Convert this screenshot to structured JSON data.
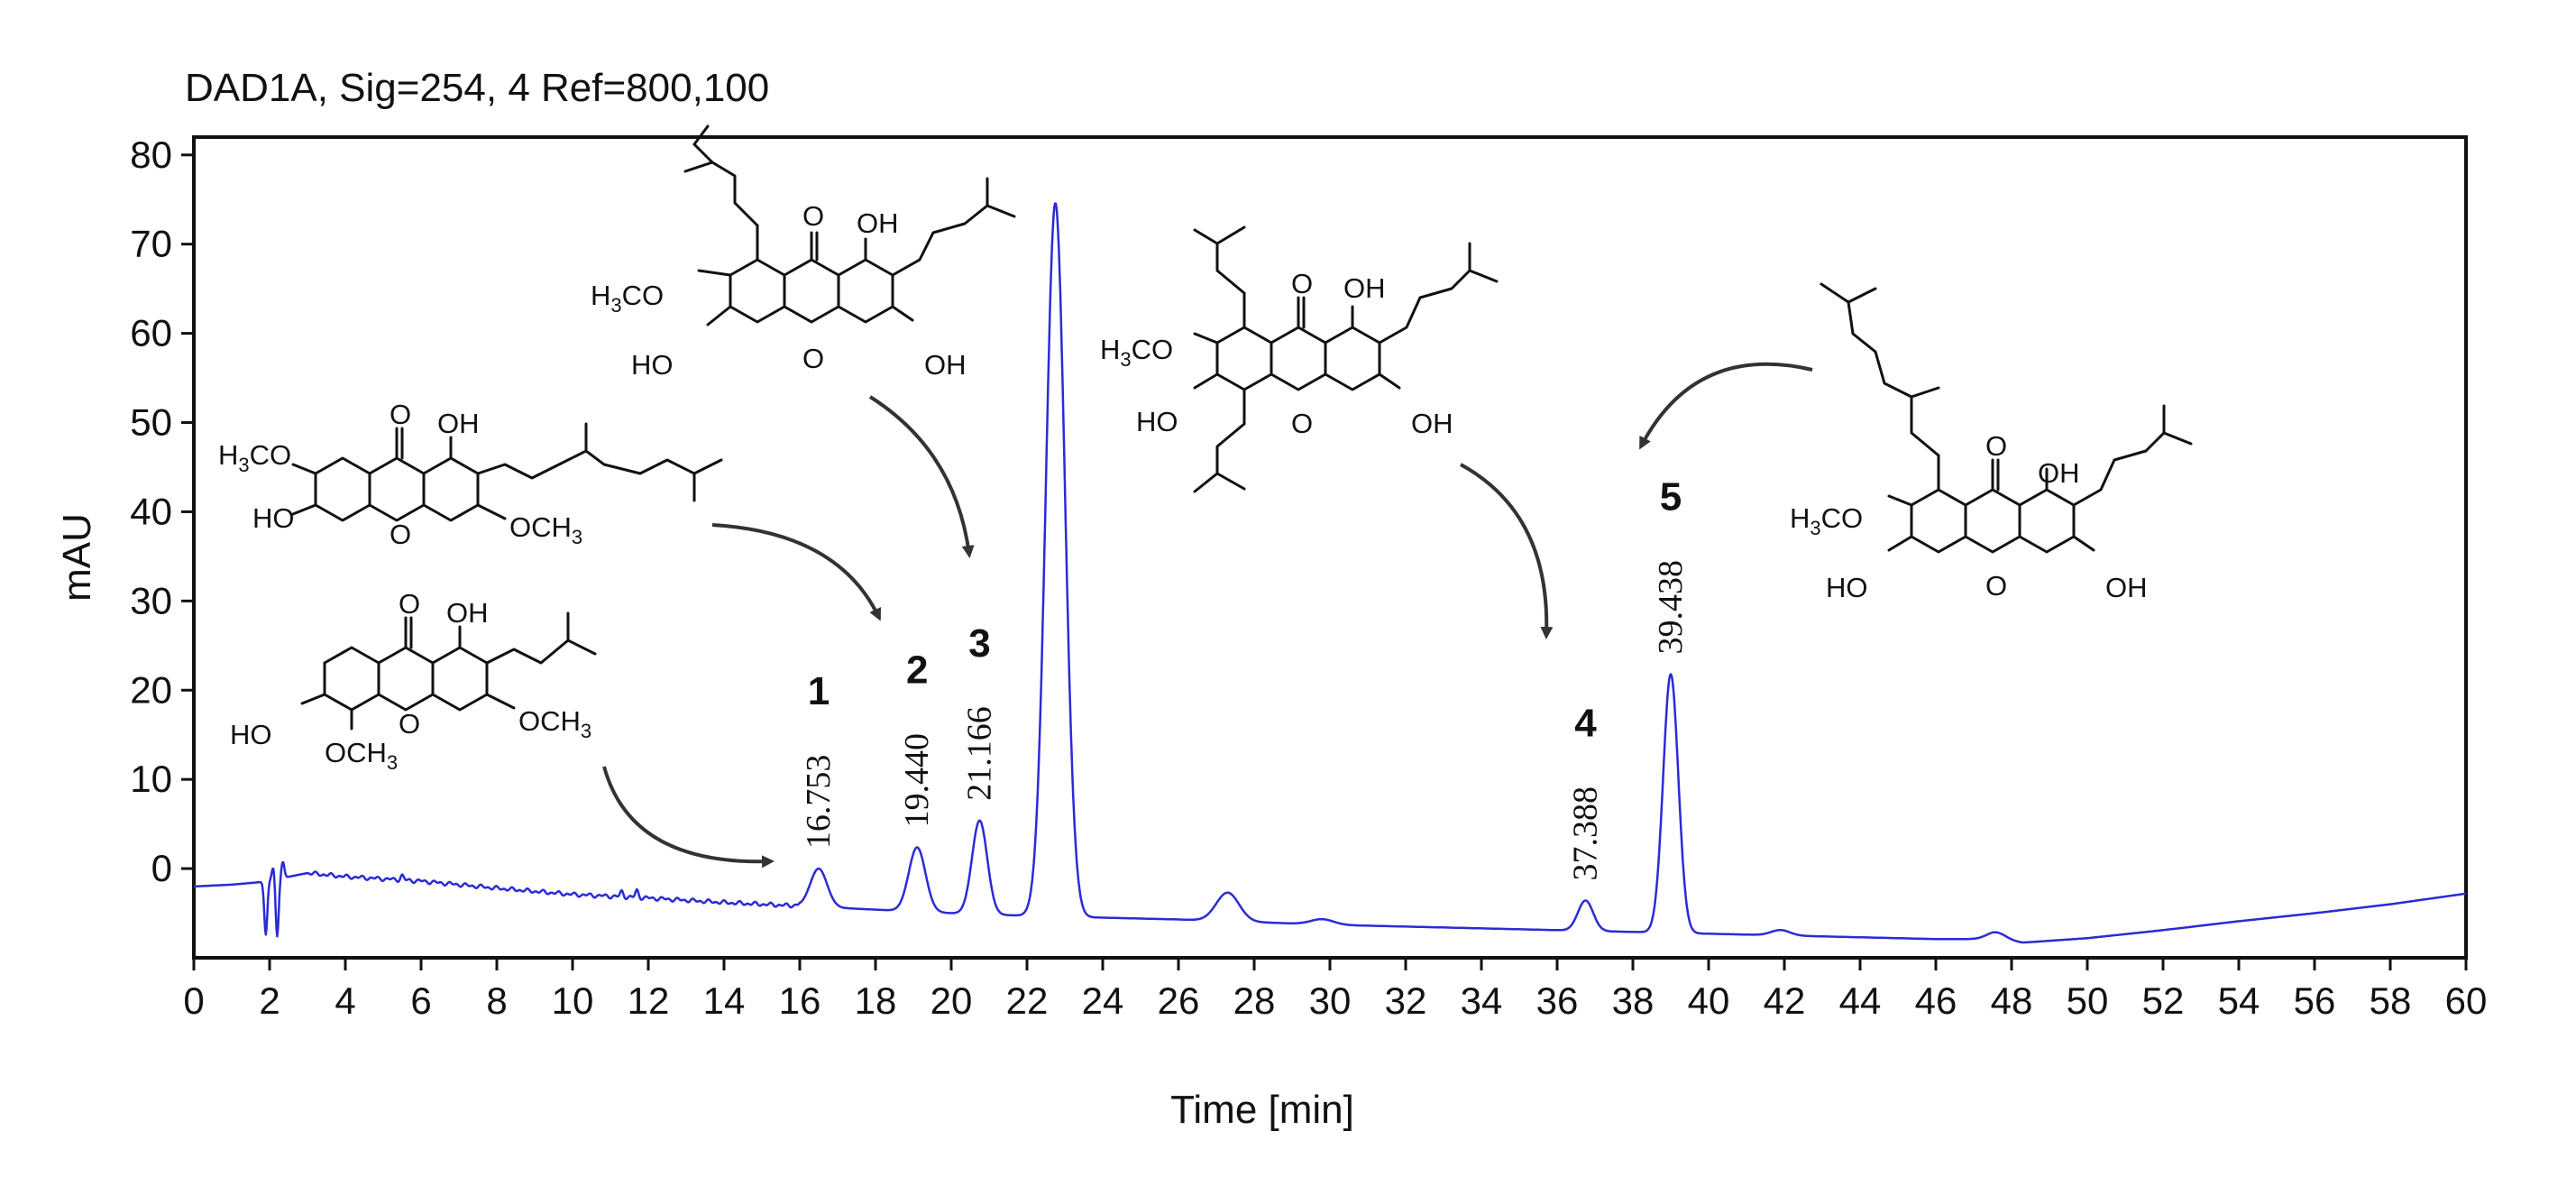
{
  "chart_data": {
    "type": "line",
    "title": "DAD1A, Sig=254, 4 Ref=800,100",
    "xlabel": "Time [min]",
    "ylabel": "mAU",
    "xlim": [
      0,
      60
    ],
    "ylim": [
      -10,
      82
    ],
    "x_ticks": [
      0,
      2,
      4,
      6,
      8,
      10,
      12,
      14,
      16,
      18,
      20,
      22,
      24,
      26,
      28,
      30,
      32,
      34,
      36,
      38,
      40,
      42,
      44,
      46,
      48,
      50,
      52,
      54,
      56,
      58,
      60
    ],
    "y_ticks": [
      0,
      10,
      20,
      30,
      40,
      50,
      60,
      70,
      80
    ],
    "grid": false,
    "legend": "none",
    "line_color": "#2b2bd6",
    "baseline": [
      [
        0,
        -2
      ],
      [
        1,
        -1.8
      ],
      [
        1.8,
        -1.5
      ],
      [
        3,
        -0.5
      ],
      [
        4,
        -0.9
      ],
      [
        6,
        -1.4
      ],
      [
        8,
        -2.2
      ],
      [
        10,
        -2.9
      ],
      [
        12,
        -3.3
      ],
      [
        14,
        -3.8
      ],
      [
        16,
        -4.2
      ],
      [
        18,
        -4.6
      ],
      [
        20,
        -5
      ],
      [
        22,
        -5.3
      ],
      [
        24,
        -5.5
      ],
      [
        26,
        -5.7
      ],
      [
        28,
        -6
      ],
      [
        30,
        -6.3
      ],
      [
        32,
        -6.5
      ],
      [
        34,
        -6.7
      ],
      [
        36,
        -6.9
      ],
      [
        38,
        -7.1
      ],
      [
        40,
        -7.3
      ],
      [
        42,
        -7.5
      ],
      [
        44,
        -7.7
      ],
      [
        46,
        -7.9
      ],
      [
        47.5,
        -7.9
      ],
      [
        48.3,
        -8.3
      ],
      [
        50,
        -7.8
      ],
      [
        52,
        -6.9
      ],
      [
        54,
        -5.9
      ],
      [
        56,
        -5
      ],
      [
        58,
        -4
      ],
      [
        60,
        -2.8
      ]
    ],
    "noise": [
      {
        "t": 1.9,
        "amp": -6
      },
      {
        "t": 2.1,
        "amp": 1.5
      },
      {
        "t": 2.2,
        "amp": -6.5
      },
      {
        "t": 2.35,
        "amp": 1.8
      },
      {
        "t": 5.5,
        "amp": 0.5
      },
      {
        "t": 11.3,
        "amp": 0.6
      },
      {
        "t": 11.7,
        "amp": 0.8
      }
    ],
    "peaks": [
      {
        "rt": 16.5,
        "height": 4.3,
        "width": 0.22
      },
      {
        "rt": 19.1,
        "height": 7.2,
        "width": 0.22
      },
      {
        "rt": 20.75,
        "height": 10.5,
        "width": 0.2
      },
      {
        "rt": 22.75,
        "height": 80,
        "width": 0.25
      },
      {
        "rt": 27.3,
        "height": 3.2,
        "width": 0.3
      },
      {
        "rt": 29.8,
        "height": 0.6,
        "width": 0.3
      },
      {
        "rt": 36.75,
        "height": 3.4,
        "width": 0.2
      },
      {
        "rt": 39.0,
        "height": 29,
        "width": 0.2
      },
      {
        "rt": 41.9,
        "height": 0.6,
        "width": 0.25
      },
      {
        "rt": 47.6,
        "height": 0.8,
        "width": 0.25
      }
    ],
    "annotations": [
      {
        "label": "1",
        "retention_time": "16.753",
        "x": 16.5
      },
      {
        "label": "2",
        "retention_time": "19.440",
        "x": 19.1
      },
      {
        "label": "3",
        "retention_time": "21.166",
        "x": 20.75
      },
      {
        "label": "4",
        "retention_time": "37.388",
        "x": 36.75
      },
      {
        "label": "5",
        "retention_time": "39.438",
        "x": 39.0
      }
    ]
  },
  "structures": {
    "labels": {
      "h3co": "H3CO",
      "och3": "OCH3",
      "oh": "OH",
      "ho": "HO",
      "o": "O"
    }
  }
}
